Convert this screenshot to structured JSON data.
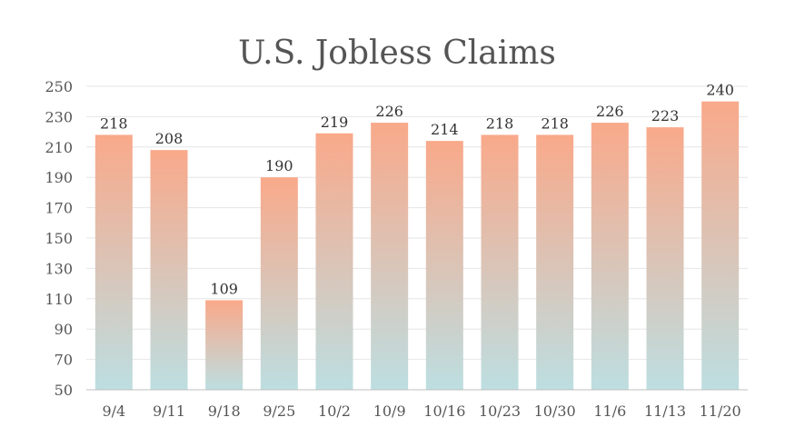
{
  "chart_data": {
    "type": "bar",
    "title": "U.S. Jobless Claims",
    "xlabel": "",
    "ylabel": "",
    "categories": [
      "9/4",
      "9/11",
      "9/18",
      "9/25",
      "10/2",
      "10/9",
      "10/16",
      "10/23",
      "10/30",
      "11/6",
      "11/13",
      "11/20"
    ],
    "values": [
      218,
      208,
      109,
      190,
      219,
      226,
      214,
      218,
      218,
      226,
      223,
      240
    ],
    "ylim": [
      50,
      250
    ],
    "yticks": [
      50,
      70,
      90,
      110,
      130,
      150,
      170,
      190,
      210,
      230,
      250
    ],
    "grid": true,
    "legend": "none",
    "bar_gradient": {
      "top": "#f9a98a",
      "bottom": "#bddee1"
    }
  }
}
